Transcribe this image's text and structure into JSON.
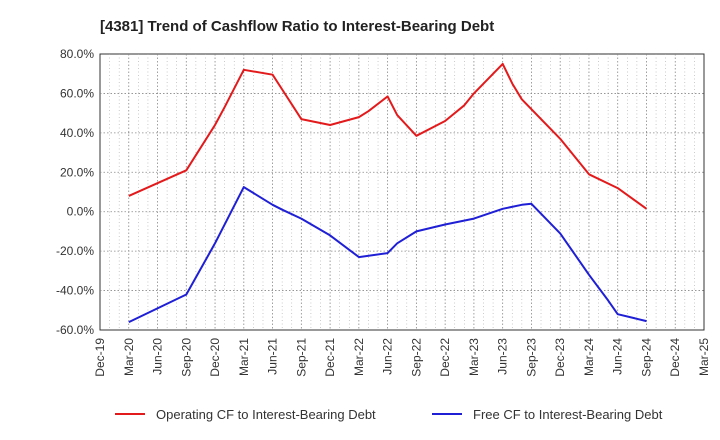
{
  "chart_data": {
    "type": "line",
    "title": "[4381]  Trend of Cashflow Ratio to Interest-Bearing Debt",
    "xlabel": "",
    "ylabel": "",
    "x_tick_labels": [
      "Dec-19",
      "Mar-20",
      "Jun-20",
      "Sep-20",
      "Dec-20",
      "Mar-21",
      "Jun-21",
      "Sep-21",
      "Dec-21",
      "Mar-22",
      "Jun-22",
      "Sep-22",
      "Dec-22",
      "Mar-23",
      "Jun-23",
      "Sep-23",
      "Dec-23",
      "Mar-24",
      "Jun-24",
      "Sep-24",
      "Dec-24",
      "Mar-25"
    ],
    "y_tick_labels": [
      "80.0%",
      "60.0%",
      "40.0%",
      "20.0%",
      "0.0%",
      "-20.0%",
      "-40.0%",
      "-60.0%"
    ],
    "ylim": [
      -60,
      80
    ],
    "grid": true,
    "legend_position": "bottom",
    "series": [
      {
        "name": "Operating CF to Interest-Bearing Debt",
        "color": "#e31a1c",
        "points": [
          [
            "Mar-20",
            8.0
          ],
          [
            "Sep-20",
            21.0
          ],
          [
            "Dec-20",
            44.0
          ],
          [
            "Jan-21",
            53.0
          ],
          [
            "Mar-21",
            72.0
          ],
          [
            "Jun-21",
            69.5
          ],
          [
            "Jul-21",
            62.0
          ],
          [
            "Sep-21",
            47.0
          ],
          [
            "Dec-21",
            44.0
          ],
          [
            "Mar-22",
            48.0
          ],
          [
            "Apr-22",
            51.0
          ],
          [
            "Jun-22",
            58.5
          ],
          [
            "Jul-22",
            49.0
          ],
          [
            "Sep-22",
            38.5
          ],
          [
            "Dec-22",
            46.0
          ],
          [
            "Feb-23",
            54.0
          ],
          [
            "Mar-23",
            60.0
          ],
          [
            "Jun-23",
            75.0
          ],
          [
            "Jul-23",
            65.0
          ],
          [
            "Aug-23",
            57.0
          ],
          [
            "Sep-23",
            52.0
          ],
          [
            "Dec-23",
            37.0
          ],
          [
            "Mar-24",
            19.0
          ],
          [
            "Jun-24",
            12.0
          ],
          [
            "Sep-24",
            1.5
          ]
        ]
      },
      {
        "name": "Free CF to Interest-Bearing Debt",
        "color": "#1f1fd6",
        "points": [
          [
            "Mar-20",
            -56.0
          ],
          [
            "Sep-20",
            -42.0
          ],
          [
            "Dec-20",
            -16.0
          ],
          [
            "Mar-21",
            12.5
          ],
          [
            "Jun-21",
            3.5
          ],
          [
            "Jul-21",
            1.0
          ],
          [
            "Sep-21",
            -3.5
          ],
          [
            "Dec-21",
            -12.0
          ],
          [
            "Mar-22",
            -23.0
          ],
          [
            "Jun-22",
            -21.0
          ],
          [
            "Jul-22",
            -16.0
          ],
          [
            "Sep-22",
            -10.0
          ],
          [
            "Dec-22",
            -6.5
          ],
          [
            "Mar-23",
            -3.5
          ],
          [
            "Jun-23",
            1.5
          ],
          [
            "Aug-23",
            3.5
          ],
          [
            "Sep-23",
            4.0
          ],
          [
            "Dec-23",
            -11.0
          ],
          [
            "Mar-24",
            -32.0
          ],
          [
            "May-24",
            -45.0
          ],
          [
            "Jun-24",
            -52.0
          ],
          [
            "Sep-24",
            -55.5
          ]
        ]
      }
    ]
  }
}
